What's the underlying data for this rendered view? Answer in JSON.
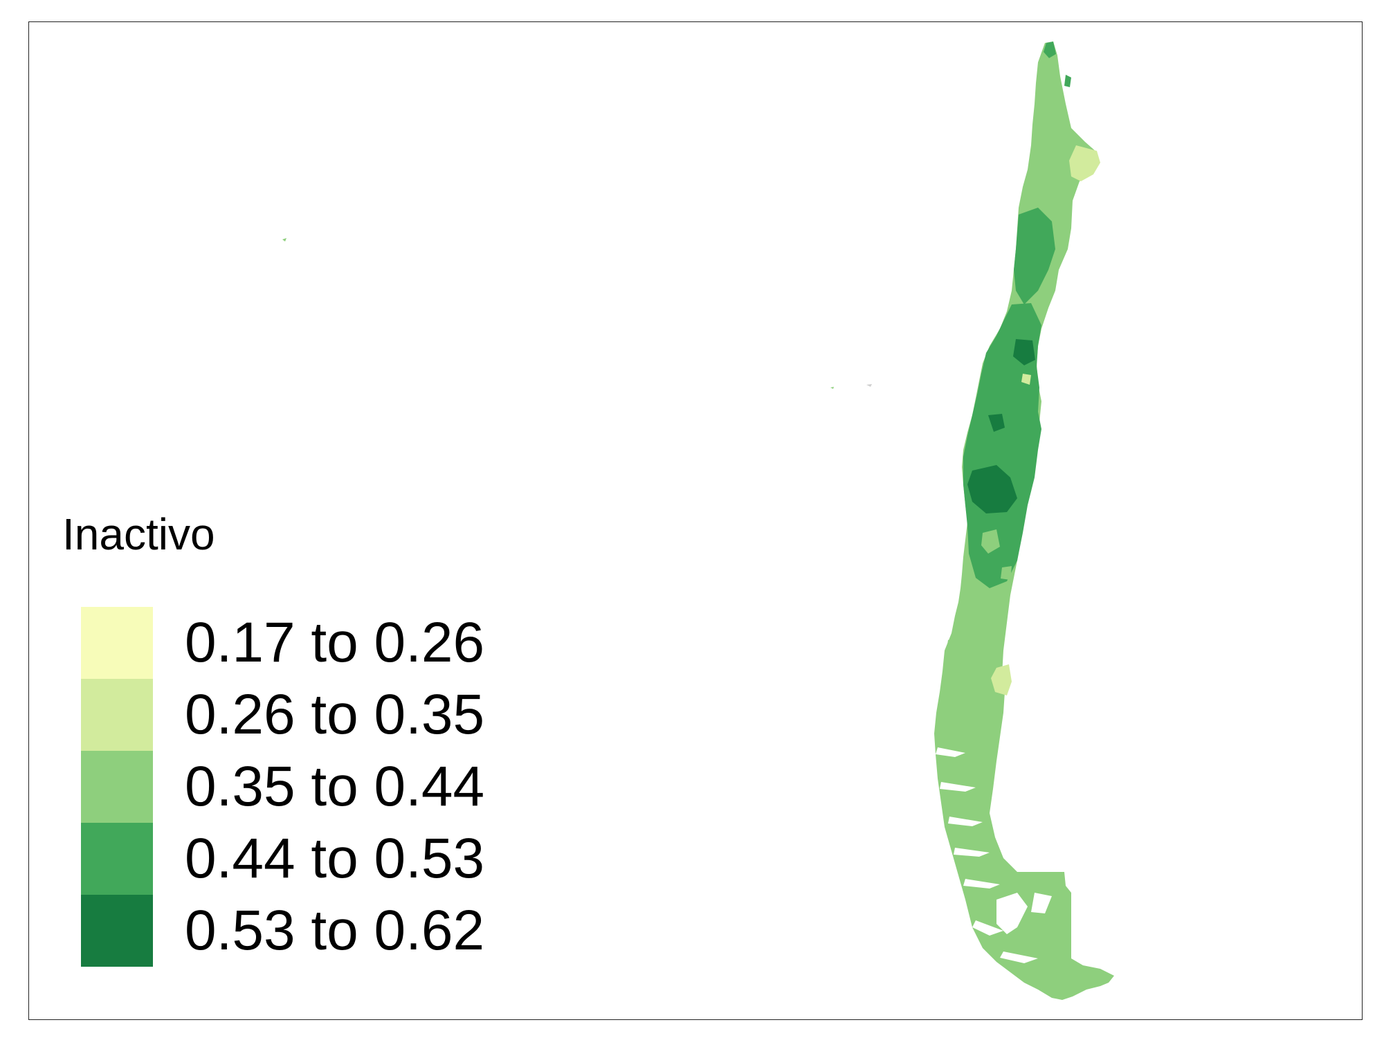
{
  "legend": {
    "title": "Inactivo",
    "classes": [
      {
        "label": "0.17 to 0.26",
        "min": 0.17,
        "max": 0.26,
        "color": "#f7fcb9"
      },
      {
        "label": "0.26 to 0.35",
        "min": 0.26,
        "max": 0.35,
        "color": "#d2eb9d"
      },
      {
        "label": "0.35 to 0.44",
        "min": 0.35,
        "max": 0.44,
        "color": "#8ecf7d"
      },
      {
        "label": "0.44 to 0.53",
        "min": 0.44,
        "max": 0.53,
        "color": "#41a85a"
      },
      {
        "label": "0.53 to 0.62",
        "min": 0.53,
        "max": 0.62,
        "color": "#177c40"
      }
    ]
  },
  "colors": {
    "background": "#ffffff",
    "frame": "#222222"
  }
}
